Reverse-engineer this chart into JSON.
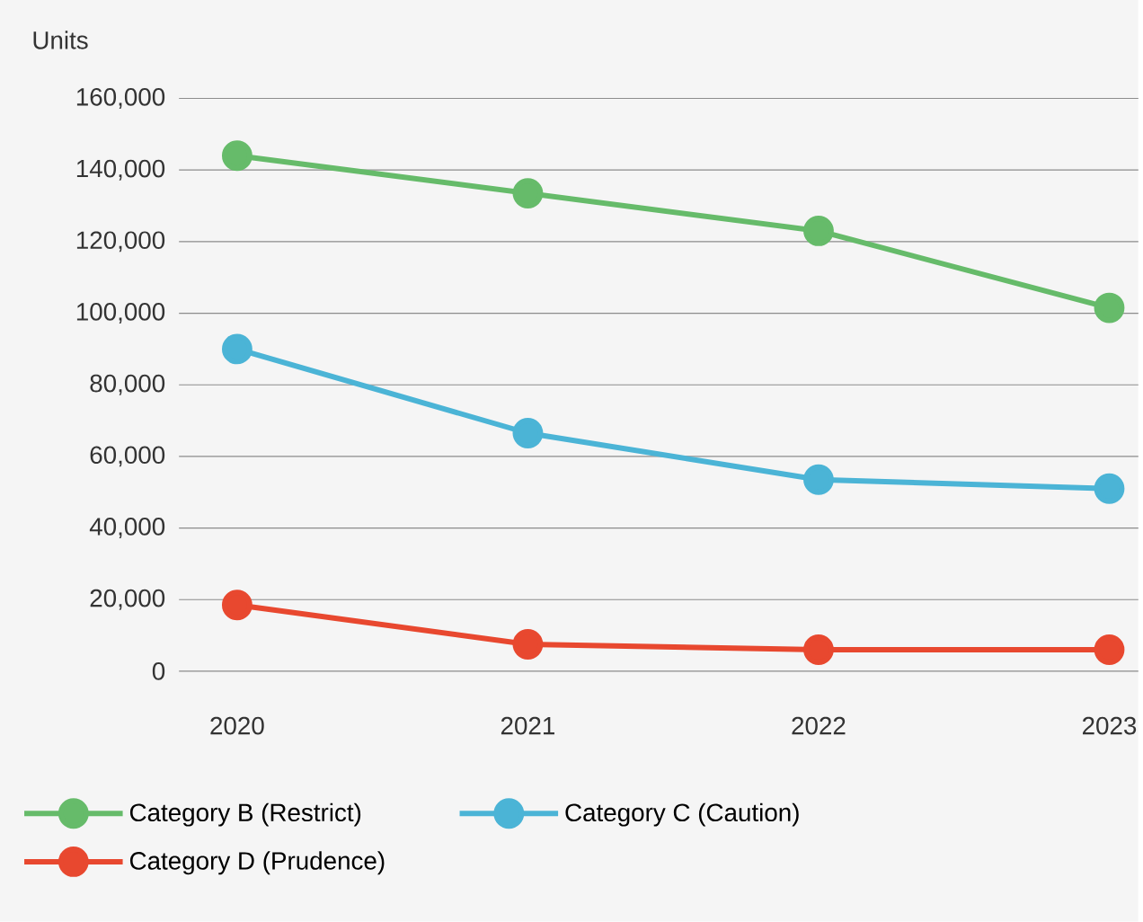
{
  "chart_data": {
    "type": "line",
    "ylabel": "Units",
    "x": [
      2020,
      2021,
      2022,
      2023
    ],
    "xlim": [
      2019.8,
      2023.1
    ],
    "xticks": [
      2020,
      2021,
      2022,
      2023
    ],
    "ylim": [
      0,
      160000
    ],
    "yticks": [
      {
        "value": 0,
        "label": "0"
      },
      {
        "value": 20000,
        "label": "20,000"
      },
      {
        "value": 40000,
        "label": "40,000"
      },
      {
        "value": 60000,
        "label": "60,000"
      },
      {
        "value": 80000,
        "label": "80,000"
      },
      {
        "value": 100000,
        "label": "100,000"
      },
      {
        "value": 120000,
        "label": "120,000"
      },
      {
        "value": 140000,
        "label": "140,000"
      },
      {
        "value": 160000,
        "label": "160,000"
      }
    ],
    "series": [
      {
        "name": "Category B (Restrict)",
        "color": "#66bb6a",
        "values": [
          144000,
          133500,
          123000,
          101500
        ]
      },
      {
        "name": "Category C (Caution)",
        "color": "#4bb4d6",
        "values": [
          90000,
          66500,
          53500,
          51000
        ]
      },
      {
        "name": "Category D (Prudence)",
        "color": "#e8482f",
        "values": [
          18500,
          7500,
          6000,
          6000
        ]
      }
    ],
    "grid": "y",
    "legend": "bottom",
    "marker": "circle",
    "line_style": "solid"
  }
}
